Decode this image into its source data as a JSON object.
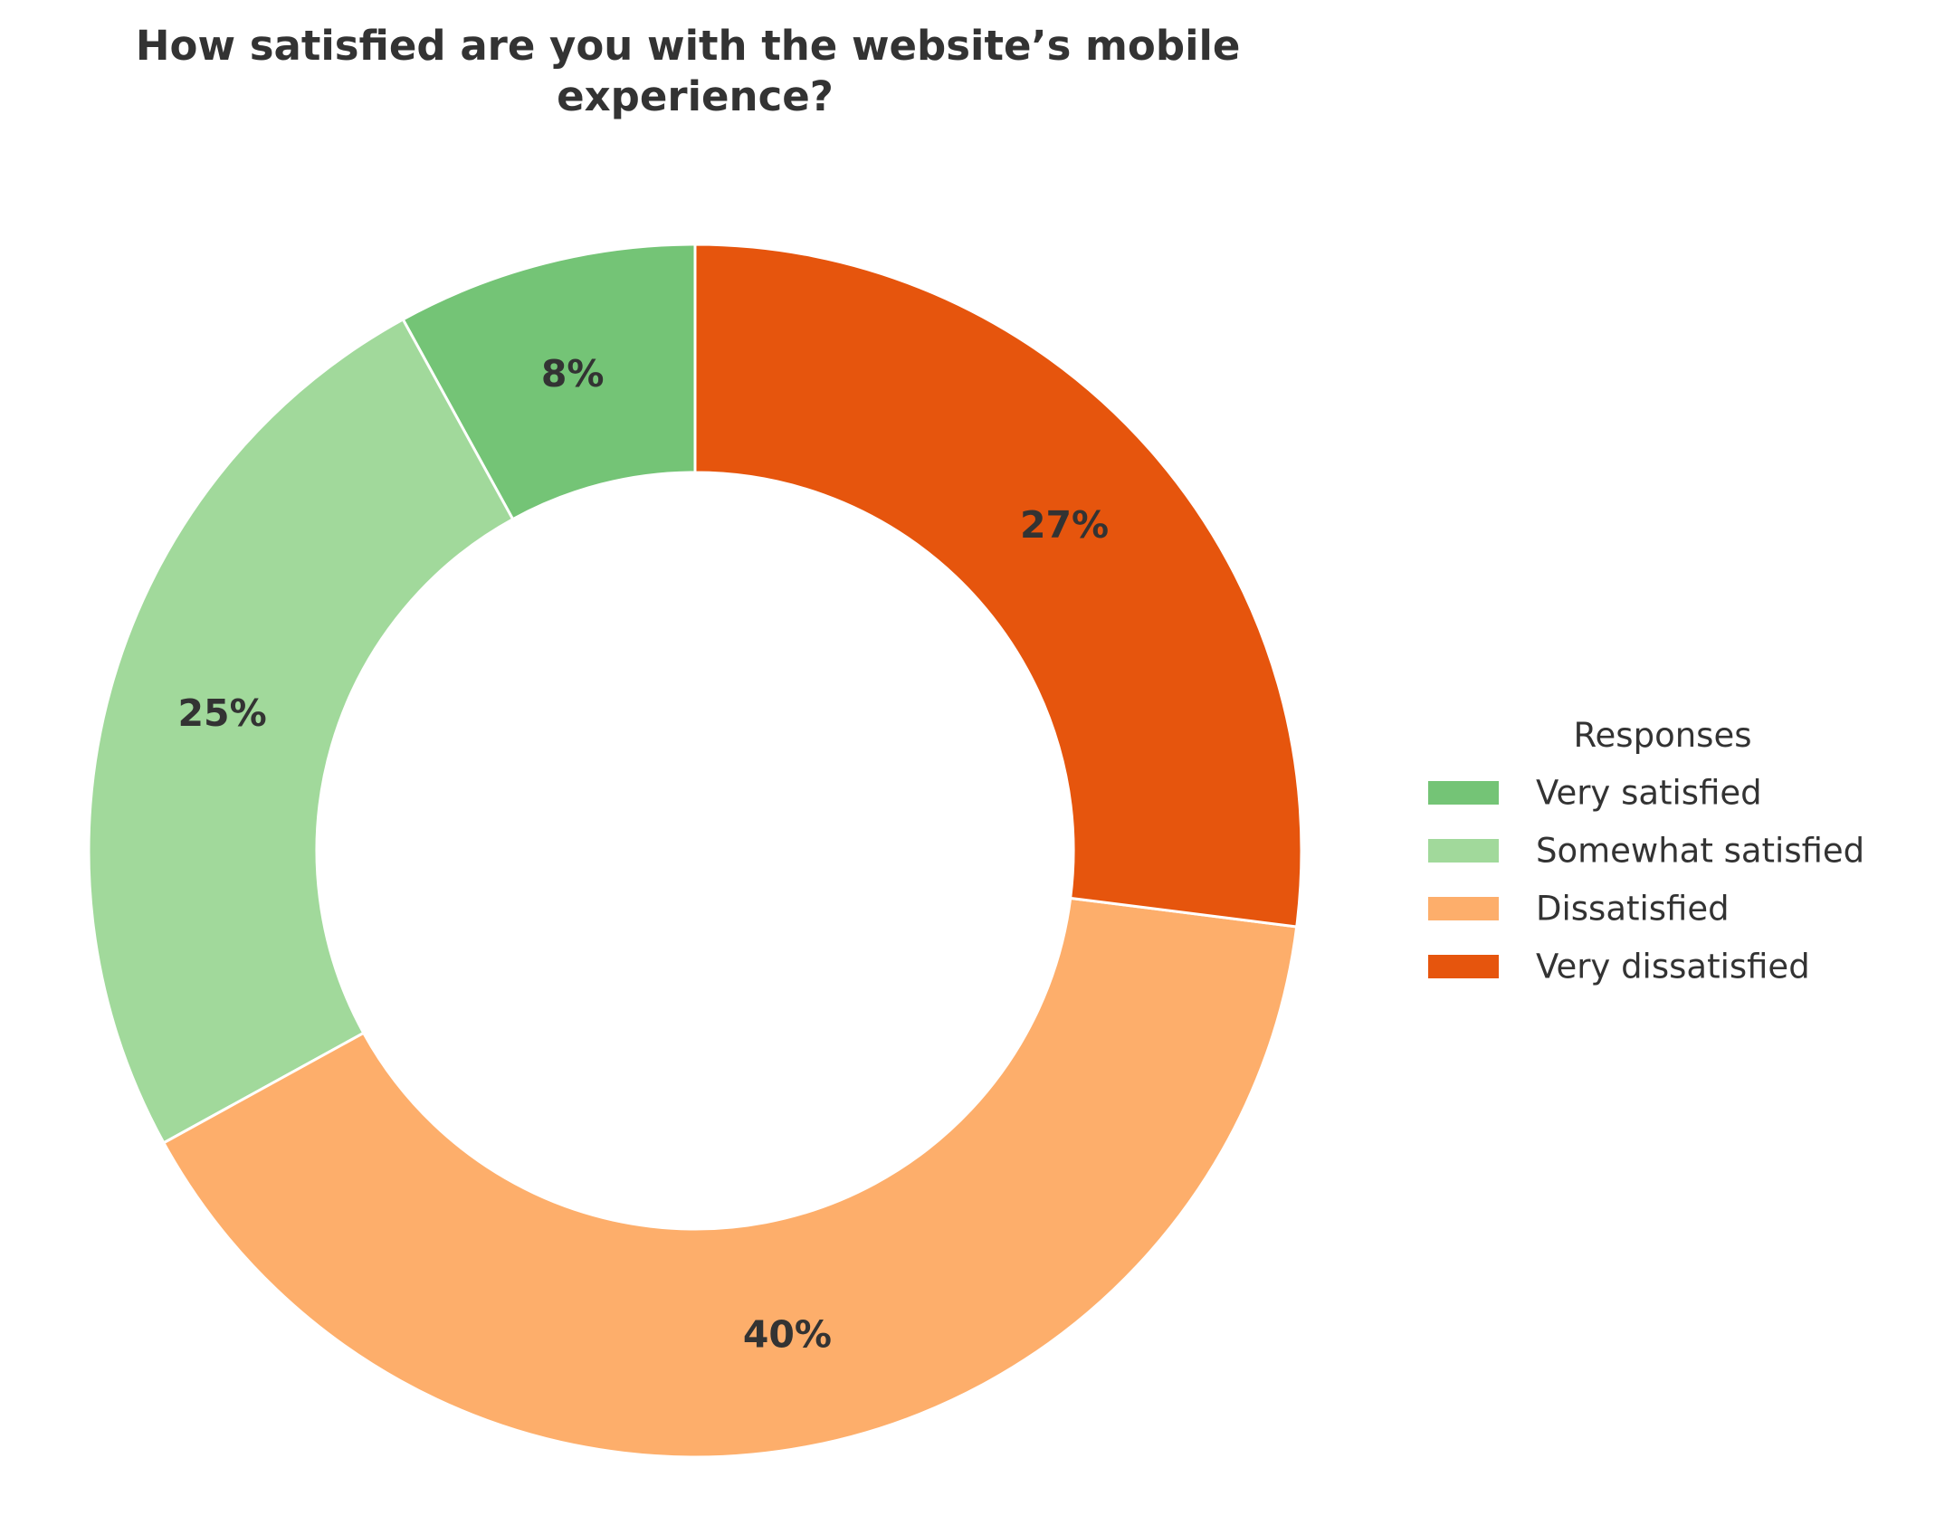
{
  "chart_data": {
    "type": "pie",
    "style": "donut",
    "title": "How satisfied are you with the website’s mobile experience?",
    "title_lines": [
      "How satisfied are you with the website’s mobile",
      "experience?"
    ],
    "categories": [
      "Very satisfied",
      "Somewhat satisfied",
      "Dissatisfied",
      "Very dissatisfied"
    ],
    "values": [
      8,
      25,
      40,
      27
    ],
    "value_labels": [
      "8%",
      "25%",
      "40%",
      "27%"
    ],
    "colors": [
      "#74c476",
      "#a1d99b",
      "#fdae6b",
      "#e6550d"
    ],
    "start_angle_deg": 90,
    "direction": "counterclockwise",
    "legend": {
      "title": "Responses",
      "placement": "right",
      "entries": [
        "Very satisfied",
        "Somewhat satisfied",
        "Dissatisfied",
        "Very dissatisfied"
      ]
    }
  }
}
